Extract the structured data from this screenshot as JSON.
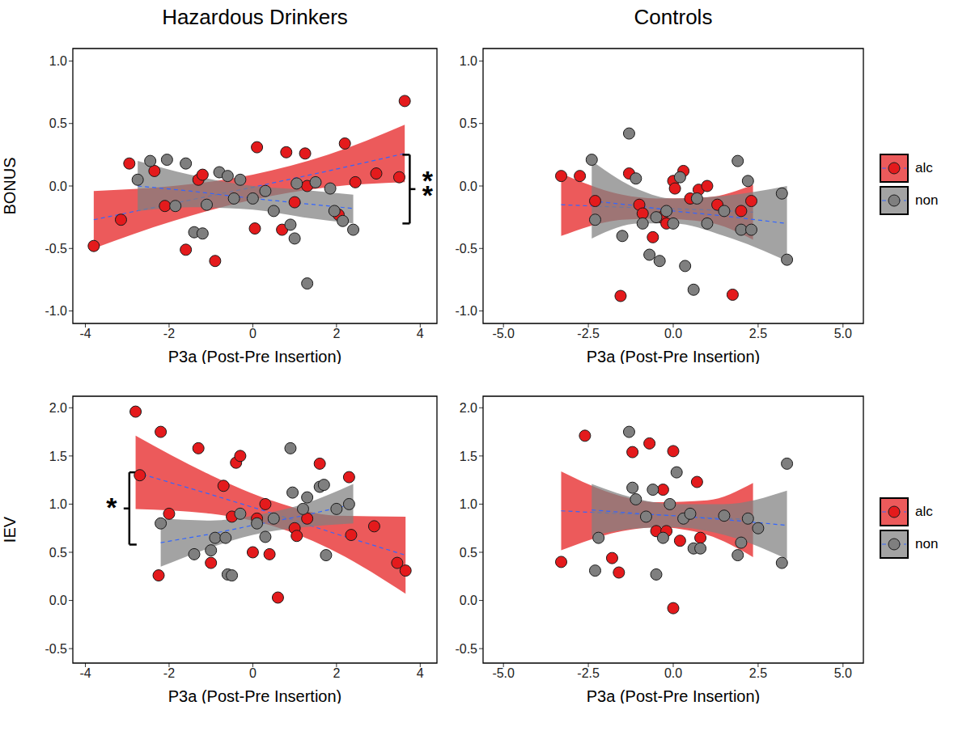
{
  "chart_data": [
    {
      "type": "scatter",
      "title": "Hazardous Drinkers",
      "x_label": "P3a (Post-Pre Insertion)",
      "y_label": "BONUS",
      "xlim": [
        -4.3,
        4.4
      ],
      "xticks": [
        -4,
        -2,
        0,
        2,
        4
      ],
      "ylim": [
        -1.1,
        1.1
      ],
      "yticks": [
        {
          "value": -1,
          "label": "-1.0"
        },
        -0.5,
        {
          "value": 0,
          "label": "0.0"
        },
        0.5,
        {
          "value": 1,
          "label": "1.0"
        }
      ],
      "series": [
        {
          "name": "alc",
          "color": "#e41a1c",
          "marker": "circle",
          "x": [
            -3.8,
            -3.15,
            -2.95,
            -2.35,
            -2.1,
            -1.6,
            -1.3,
            -1.2,
            -0.9,
            0.05,
            0.1,
            0.7,
            0.8,
            1.0,
            1.25,
            1.3,
            2.05,
            2.2,
            2.45,
            2.95,
            3.5,
            3.63
          ],
          "y": [
            -0.48,
            -0.27,
            0.18,
            0.12,
            -0.16,
            -0.51,
            0.05,
            0.09,
            -0.6,
            -0.34,
            0.31,
            -0.35,
            0.27,
            -0.13,
            0.26,
            0.0,
            -0.23,
            0.34,
            0.03,
            0.1,
            0.07,
            0.68
          ],
          "fit": {
            "color": "#3366ff",
            "line_style": "dashed",
            "x": [
              -3.8,
              -1.9,
              0,
              1.8,
              3.63
            ],
            "y": [
              -0.27,
              -0.14,
              -0.01,
              0.12,
              0.26
            ],
            "lower": [
              -0.5,
              -0.28,
              -0.11,
              -0.01,
              0.03
            ],
            "upper": [
              -0.04,
              0.0,
              0.09,
              0.25,
              0.49
            ]
          }
        },
        {
          "name": "non",
          "color": "#7f7f7f",
          "marker": "circle",
          "x": [
            -2.75,
            -2.45,
            -2.05,
            -1.85,
            -1.6,
            -1.4,
            -1.2,
            -1.1,
            -0.8,
            -0.6,
            -0.45,
            -0.3,
            0.0,
            0.3,
            0.5,
            0.9,
            1.0,
            1.05,
            1.3,
            1.5,
            1.85,
            1.95,
            2.15,
            2.4
          ],
          "y": [
            0.05,
            0.2,
            0.21,
            -0.16,
            0.18,
            -0.37,
            -0.38,
            -0.15,
            0.11,
            0.08,
            -0.1,
            0.05,
            -0.1,
            -0.04,
            -0.2,
            -0.31,
            -0.42,
            0.02,
            -0.78,
            0.03,
            -0.02,
            -0.2,
            -0.28,
            -0.35
          ],
          "fit": {
            "color": "#3366ff",
            "line_style": "dashed",
            "x": [
              -2.75,
              -1.5,
              0,
              1.2,
              2.4
            ],
            "y": [
              0.0,
              -0.04,
              -0.1,
              -0.14,
              -0.18
            ],
            "lower": [
              -0.2,
              -0.17,
              -0.19,
              -0.25,
              -0.3
            ],
            "upper": [
              0.2,
              0.09,
              0.0,
              -0.03,
              -0.07
            ]
          }
        }
      ],
      "annotations": [
        {
          "text": "**",
          "x": 3.75,
          "y": [
            -0.3,
            0.25
          ]
        }
      ]
    },
    {
      "type": "scatter",
      "title": "Controls",
      "x_label": "P3a (Post-Pre Insertion)",
      "legend": "right",
      "xlim": [
        -5.6,
        5.6
      ],
      "xticks": [
        {
          "value": -5,
          "label": "-5.0"
        },
        -2.5,
        {
          "value": 0,
          "label": "0.0"
        },
        2.5,
        {
          "value": 5,
          "label": "5.0"
        }
      ],
      "ylim": [
        -1.1,
        1.1
      ],
      "yticks": [
        {
          "value": -1,
          "label": "-1.0"
        },
        -0.5,
        {
          "value": 0,
          "label": "0.0"
        },
        0.5,
        {
          "value": 1,
          "label": "1.0"
        }
      ],
      "series": [
        {
          "name": "alc",
          "color": "#e41a1c",
          "marker": "circle",
          "x": [
            -3.3,
            -2.75,
            -2.3,
            -1.55,
            -1.3,
            -1.0,
            -0.9,
            -0.6,
            -0.35,
            -0.2,
            0.0,
            0.05,
            0.3,
            0.5,
            0.75,
            1.0,
            1.3,
            1.75,
            2.0,
            2.3
          ],
          "y": [
            0.08,
            0.08,
            -0.12,
            -0.88,
            0.1,
            -0.15,
            -0.22,
            -0.41,
            -0.25,
            -0.3,
            0.04,
            -0.02,
            0.12,
            -0.1,
            -0.03,
            0.0,
            -0.15,
            -0.87,
            -0.2,
            -0.12
          ],
          "fit": {
            "color": "#3366ff",
            "line_style": "dashed",
            "x": [
              -3.3,
              -1.5,
              -0.5,
              1,
              2.35
            ],
            "y": [
              -0.15,
              -0.17,
              -0.18,
              -0.19,
              -0.21
            ],
            "lower": [
              -0.4,
              -0.27,
              -0.26,
              -0.29,
              -0.43
            ],
            "upper": [
              0.1,
              -0.07,
              -0.1,
              -0.09,
              0.01
            ]
          }
        },
        {
          "name": "non",
          "color": "#7f7f7f",
          "marker": "circle",
          "x": [
            -2.4,
            -2.3,
            -1.5,
            -1.3,
            -1.1,
            -0.9,
            -0.7,
            -0.5,
            -0.4,
            -0.2,
            0.0,
            0.2,
            0.35,
            0.6,
            0.7,
            1.0,
            1.5,
            1.9,
            2.0,
            2.2,
            2.3,
            3.2,
            3.35
          ],
          "y": [
            0.21,
            -0.27,
            -0.4,
            0.42,
            0.06,
            -0.3,
            -0.55,
            -0.25,
            -0.6,
            -0.2,
            -0.3,
            0.07,
            -0.64,
            -0.83,
            -0.1,
            -0.3,
            -0.2,
            0.2,
            -0.35,
            0.04,
            -0.35,
            -0.06,
            -0.59
          ],
          "fit": {
            "color": "#3366ff",
            "line_style": "dashed",
            "x": [
              -2.4,
              -1,
              0,
              1.5,
              3.35
            ],
            "y": [
              -0.12,
              -0.16,
              -0.2,
              -0.24,
              -0.3
            ],
            "lower": [
              -0.42,
              -0.3,
              -0.3,
              -0.4,
              -0.6
            ],
            "upper": [
              0.2,
              -0.03,
              -0.1,
              -0.08,
              0.0
            ]
          }
        }
      ]
    },
    {
      "type": "scatter",
      "x_label": "P3a (Post-Pre Insertion)",
      "y_label": "IEV",
      "xlim": [
        -4.3,
        4.4
      ],
      "xticks": [
        -4,
        -2,
        0,
        2,
        4
      ],
      "ylim": [
        -0.65,
        2.12
      ],
      "yticks": [
        -0.5,
        {
          "value": 0,
          "label": "0.0"
        },
        0.5,
        {
          "value": 1,
          "label": "1.0"
        },
        1.5,
        {
          "value": 2,
          "label": "2.0"
        }
      ],
      "series": [
        {
          "name": "alc",
          "color": "#e41a1c",
          "marker": "circle",
          "x": [
            -2.8,
            -2.7,
            -2.25,
            -2.2,
            -2.0,
            -1.3,
            -1.0,
            -0.7,
            -0.5,
            -0.4,
            -0.3,
            0.0,
            0.1,
            0.3,
            0.4,
            0.6,
            1.0,
            1.05,
            1.3,
            1.6,
            2.3,
            2.35,
            2.9,
            3.45,
            3.65
          ],
          "y": [
            1.96,
            1.3,
            0.26,
            1.75,
            0.9,
            1.58,
            0.39,
            1.19,
            0.87,
            1.43,
            1.5,
            0.5,
            0.85,
            1.0,
            0.48,
            0.03,
            0.75,
            0.67,
            0.85,
            1.42,
            1.28,
            0.68,
            0.77,
            0.39,
            0.31
          ],
          "fit": {
            "color": "#3366ff",
            "line_style": "dashed",
            "x": [
              -2.8,
              -1,
              0.5,
              2,
              3.65
            ],
            "y": [
              1.33,
              1.1,
              0.9,
              0.69,
              0.47
            ],
            "lower": [
              0.95,
              0.9,
              0.77,
              0.5,
              0.07
            ],
            "upper": [
              1.71,
              1.3,
              1.03,
              0.88,
              0.87
            ]
          }
        },
        {
          "name": "non",
          "color": "#7f7f7f",
          "marker": "circle",
          "x": [
            -2.2,
            -1.4,
            -1.0,
            -0.9,
            -0.65,
            -0.6,
            -0.5,
            -0.3,
            0.1,
            0.3,
            0.5,
            0.9,
            0.95,
            1.2,
            1.3,
            1.6,
            1.7,
            1.75,
            2.0,
            2.3
          ],
          "y": [
            0.8,
            0.48,
            0.52,
            0.65,
            0.65,
            0.27,
            0.26,
            0.9,
            0.8,
            0.66,
            0.85,
            1.58,
            1.12,
            0.95,
            1.07,
            1.18,
            1.2,
            0.47,
            0.95,
            1.0
          ],
          "fit": {
            "color": "#3366ff",
            "line_style": "dashed",
            "x": [
              -2.2,
              -1,
              0,
              1.2,
              2.4
            ],
            "y": [
              0.6,
              0.69,
              0.78,
              0.88,
              1.0
            ],
            "lower": [
              0.35,
              0.55,
              0.68,
              0.76,
              0.8
            ],
            "upper": [
              0.85,
              0.83,
              0.88,
              1.0,
              1.21
            ]
          }
        }
      ],
      "annotations": [
        {
          "text": "*",
          "x": -2.95,
          "y": [
            0.58,
            1.33
          ]
        }
      ]
    },
    {
      "type": "scatter",
      "x_label": "P3a (Post-Pre Insertion)",
      "legend": "right",
      "xlim": [
        -5.6,
        5.6
      ],
      "xticks": [
        {
          "value": -5,
          "label": "-5.0"
        },
        -2.5,
        {
          "value": 0,
          "label": "0.0"
        },
        2.5,
        {
          "value": 5,
          "label": "5.0"
        }
      ],
      "ylim": [
        -0.65,
        2.12
      ],
      "yticks": [
        -0.5,
        {
          "value": 0,
          "label": "0.0"
        },
        0.5,
        {
          "value": 1,
          "label": "1.0"
        },
        1.5,
        {
          "value": 2,
          "label": "2.0"
        }
      ],
      "series": [
        {
          "name": "alc",
          "color": "#e41a1c",
          "marker": "circle",
          "x": [
            -3.3,
            -2.6,
            -1.8,
            -1.6,
            -1.2,
            -0.7,
            -0.5,
            -0.3,
            -0.2,
            0.0,
            0.0,
            0.2,
            0.7,
            0.8
          ],
          "y": [
            0.4,
            1.71,
            0.44,
            0.29,
            1.54,
            1.63,
            0.72,
            1.15,
            0.72,
            1.55,
            -0.08,
            0.62,
            1.23,
            0.65
          ],
          "fit": {
            "color": "#3366ff",
            "line_style": "dashed",
            "x": [
              -3.3,
              -1.5,
              -0.5,
              1,
              2.35
            ],
            "y": [
              0.93,
              0.9,
              0.89,
              0.86,
              0.84
            ],
            "lower": [
              0.52,
              0.72,
              0.76,
              0.68,
              0.45
            ],
            "upper": [
              1.34,
              1.08,
              1.02,
              1.04,
              1.22
            ]
          }
        },
        {
          "name": "non",
          "color": "#7f7f7f",
          "marker": "circle",
          "x": [
            -2.3,
            -2.2,
            -1.3,
            -1.2,
            -1.1,
            -0.8,
            -0.6,
            -0.5,
            -0.3,
            -0.1,
            0.1,
            0.3,
            0.5,
            0.6,
            0.8,
            1.5,
            1.9,
            2.0,
            2.2,
            2.5,
            3.2,
            3.35
          ],
          "y": [
            0.31,
            0.65,
            1.75,
            1.17,
            1.05,
            0.87,
            1.15,
            0.27,
            0.65,
            1.0,
            1.33,
            0.85,
            0.9,
            0.54,
            0.54,
            0.88,
            0.47,
            0.6,
            0.85,
            0.75,
            0.39,
            1.42
          ],
          "fit": {
            "color": "#3366ff",
            "line_style": "dashed",
            "x": [
              -2.4,
              -1,
              0,
              1.5,
              3.35
            ],
            "y": [
              0.94,
              0.9,
              0.88,
              0.84,
              0.78
            ],
            "lower": [
              0.67,
              0.75,
              0.76,
              0.68,
              0.43
            ],
            "upper": [
              1.21,
              1.05,
              1.0,
              1.0,
              1.14
            ]
          }
        }
      ]
    }
  ]
}
